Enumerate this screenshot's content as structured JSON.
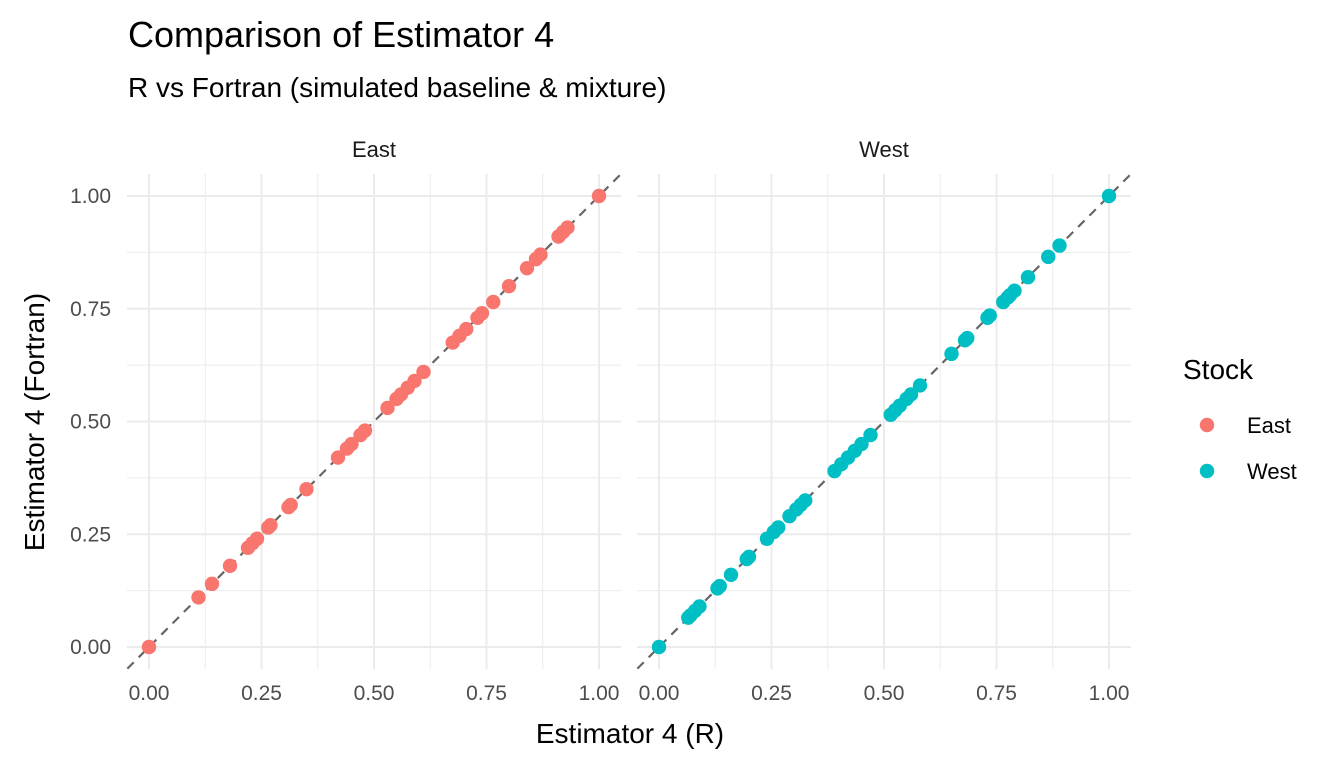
{
  "chart_data": {
    "type": "scatter",
    "title": "Comparison of Estimator 4",
    "subtitle": "R vs Fortran (simulated baseline & mixture)",
    "xlabel": "Estimator 4 (R)",
    "ylabel": "Estimator 4 (Fortran)",
    "xlim": [
      0,
      1
    ],
    "ylim": [
      0,
      1
    ],
    "ticks": [
      "0.00",
      "0.25",
      "0.50",
      "0.75",
      "1.00"
    ],
    "grid": true,
    "reference_line": "y = x (dashed)",
    "legend": {
      "title": "Stock",
      "position": "right",
      "entries": [
        {
          "label": "East",
          "color": "#F8766D"
        },
        {
          "label": "West",
          "color": "#00BFC4"
        }
      ]
    },
    "panels": [
      {
        "label": "East",
        "series": "East",
        "color": "#F8766D",
        "points": [
          [
            0.0,
            0.0
          ],
          [
            0.11,
            0.11
          ],
          [
            0.14,
            0.14
          ],
          [
            0.18,
            0.18
          ],
          [
            0.22,
            0.22
          ],
          [
            0.23,
            0.23
          ],
          [
            0.24,
            0.24
          ],
          [
            0.265,
            0.265
          ],
          [
            0.27,
            0.27
          ],
          [
            0.31,
            0.31
          ],
          [
            0.315,
            0.315
          ],
          [
            0.35,
            0.35
          ],
          [
            0.42,
            0.42
          ],
          [
            0.44,
            0.44
          ],
          [
            0.45,
            0.45
          ],
          [
            0.47,
            0.47
          ],
          [
            0.48,
            0.48
          ],
          [
            0.53,
            0.53
          ],
          [
            0.55,
            0.55
          ],
          [
            0.56,
            0.56
          ],
          [
            0.575,
            0.575
          ],
          [
            0.59,
            0.59
          ],
          [
            0.61,
            0.61
          ],
          [
            0.675,
            0.675
          ],
          [
            0.69,
            0.69
          ],
          [
            0.705,
            0.705
          ],
          [
            0.73,
            0.73
          ],
          [
            0.74,
            0.74
          ],
          [
            0.765,
            0.765
          ],
          [
            0.8,
            0.8
          ],
          [
            0.84,
            0.84
          ],
          [
            0.86,
            0.86
          ],
          [
            0.87,
            0.87
          ],
          [
            0.91,
            0.91
          ],
          [
            0.92,
            0.92
          ],
          [
            0.93,
            0.93
          ],
          [
            1.0,
            1.0
          ]
        ]
      },
      {
        "label": "West",
        "series": "West",
        "color": "#00BFC4",
        "points": [
          [
            0.0,
            0.0
          ],
          [
            0.065,
            0.065
          ],
          [
            0.07,
            0.07
          ],
          [
            0.08,
            0.08
          ],
          [
            0.09,
            0.09
          ],
          [
            0.13,
            0.13
          ],
          [
            0.135,
            0.135
          ],
          [
            0.16,
            0.16
          ],
          [
            0.195,
            0.195
          ],
          [
            0.2,
            0.2
          ],
          [
            0.24,
            0.24
          ],
          [
            0.255,
            0.255
          ],
          [
            0.265,
            0.265
          ],
          [
            0.29,
            0.29
          ],
          [
            0.305,
            0.305
          ],
          [
            0.315,
            0.315
          ],
          [
            0.325,
            0.325
          ],
          [
            0.39,
            0.39
          ],
          [
            0.405,
            0.405
          ],
          [
            0.42,
            0.42
          ],
          [
            0.435,
            0.435
          ],
          [
            0.45,
            0.45
          ],
          [
            0.47,
            0.47
          ],
          [
            0.515,
            0.515
          ],
          [
            0.525,
            0.525
          ],
          [
            0.535,
            0.535
          ],
          [
            0.55,
            0.55
          ],
          [
            0.56,
            0.56
          ],
          [
            0.58,
            0.58
          ],
          [
            0.65,
            0.65
          ],
          [
            0.68,
            0.68
          ],
          [
            0.685,
            0.685
          ],
          [
            0.73,
            0.73
          ],
          [
            0.735,
            0.735
          ],
          [
            0.765,
            0.765
          ],
          [
            0.775,
            0.775
          ],
          [
            0.78,
            0.78
          ],
          [
            0.79,
            0.79
          ],
          [
            0.82,
            0.82
          ],
          [
            0.865,
            0.865
          ],
          [
            0.89,
            0.89
          ],
          [
            1.0,
            1.0
          ]
        ]
      }
    ]
  }
}
